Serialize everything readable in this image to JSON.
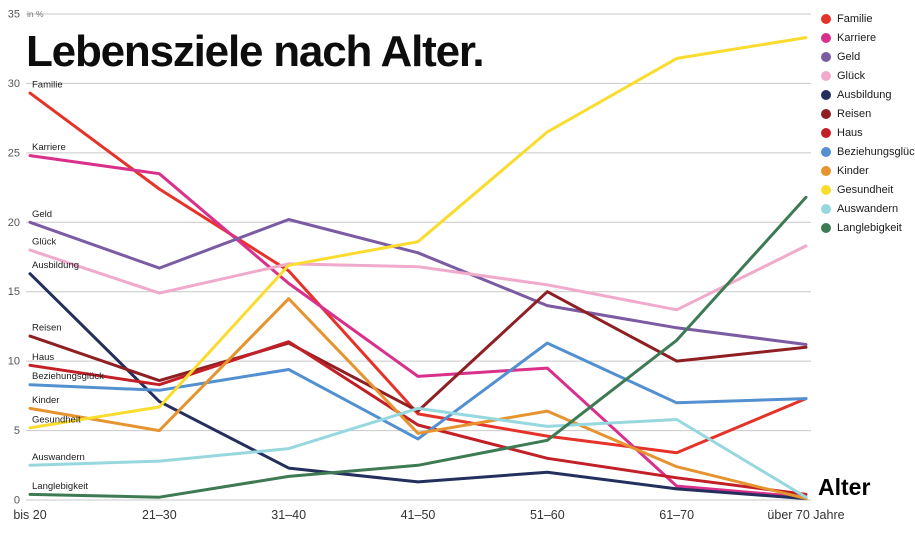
{
  "title": "Lebensziele nach Alter.",
  "chart_data": {
    "type": "line",
    "title": "Lebensziele nach Alter.",
    "xlabel": "Alter",
    "ylabel": "in %",
    "unit_label": "in %",
    "ylim": [
      0,
      35
    ],
    "yticks": [
      0,
      5,
      10,
      15,
      20,
      25,
      30,
      35
    ],
    "grid": true,
    "legend_position": "top-right",
    "categories": [
      "bis 20",
      "21–30",
      "31–40",
      "41–50",
      "51–60",
      "61–70",
      "über 70 Jahre"
    ],
    "series": [
      {
        "name": "Familie",
        "color": "#e5332a",
        "values": [
          29.3,
          22.4,
          16.5,
          6.2,
          4.6,
          3.4,
          7.3
        ]
      },
      {
        "name": "Karriere",
        "color": "#d9308c",
        "values": [
          24.8,
          23.5,
          15.6,
          8.9,
          9.5,
          1.0,
          0.2
        ]
      },
      {
        "name": "Geld",
        "color": "#7b5ca3",
        "values": [
          20.0,
          16.7,
          20.2,
          17.8,
          14.0,
          12.4,
          11.2
        ]
      },
      {
        "name": "Glück",
        "color": "#f0aacb",
        "values": [
          18.0,
          14.9,
          17.0,
          16.8,
          15.5,
          13.7,
          18.3
        ]
      },
      {
        "name": "Ausbildung",
        "color": "#252f5e",
        "values": [
          16.3,
          7.1,
          2.3,
          1.3,
          2.0,
          0.8,
          0.1
        ]
      },
      {
        "name": "Reisen",
        "color": "#8e2023",
        "values": [
          11.8,
          8.6,
          11.3,
          6.4,
          15.0,
          10.0,
          11.0
        ]
      },
      {
        "name": "Haus",
        "color": "#c22026",
        "values": [
          9.7,
          8.3,
          11.4,
          5.4,
          3.0,
          1.6,
          0.4
        ]
      },
      {
        "name": "Beziehungsglück",
        "color": "#5290d0",
        "values": [
          8.3,
          7.9,
          9.4,
          4.4,
          11.3,
          7.0,
          7.3
        ]
      },
      {
        "name": "Kinder",
        "color": "#e5942f",
        "values": [
          6.6,
          5.0,
          14.5,
          4.8,
          6.4,
          2.4,
          0.1
        ]
      },
      {
        "name": "Gesundheit",
        "color": "#f9dc2e",
        "values": [
          5.2,
          6.7,
          16.9,
          18.6,
          26.5,
          31.8,
          33.3
        ]
      },
      {
        "name": "Auswandern",
        "color": "#97d7de",
        "values": [
          2.5,
          2.8,
          3.7,
          6.6,
          5.3,
          5.8,
          0.2
        ]
      },
      {
        "name": "Langlebigkeit",
        "color": "#3e7a53",
        "values": [
          0.4,
          0.2,
          1.7,
          2.5,
          4.3,
          11.5,
          21.8
        ]
      }
    ]
  }
}
